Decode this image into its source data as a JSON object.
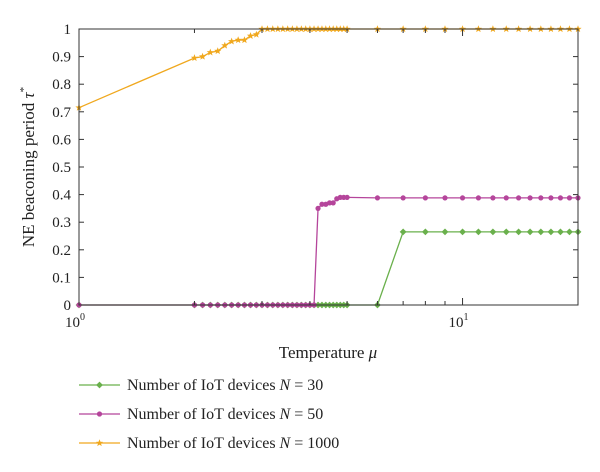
{
  "chart_data": {
    "type": "line",
    "xlabel": "Temperature",
    "xlabel_var": "μ",
    "ylabel": "NE beaconing period",
    "ylabel_var": "τ",
    "ylabel_sup": "*",
    "xscale": "log",
    "xlim": [
      1,
      20
    ],
    "ylim": [
      0,
      1
    ],
    "x_ticks": [
      {
        "value": 1,
        "base": "10",
        "exp": "0"
      },
      {
        "value": 10,
        "base": "10",
        "exp": "1"
      }
    ],
    "y_ticks": [
      {
        "value": 0,
        "label": "0"
      },
      {
        "value": 0.1,
        "label": "0.1"
      },
      {
        "value": 0.2,
        "label": "0.2"
      },
      {
        "value": 0.3,
        "label": "0.3"
      },
      {
        "value": 0.4,
        "label": "0.4"
      },
      {
        "value": 0.5,
        "label": "0.5"
      },
      {
        "value": 0.6,
        "label": "0.6"
      },
      {
        "value": 0.7,
        "label": "0.7"
      },
      {
        "value": 0.8,
        "label": "0.8"
      },
      {
        "value": 0.9,
        "label": "0.9"
      },
      {
        "value": 1,
        "label": "1"
      }
    ],
    "grid": false,
    "legend_position": "bottom",
    "series": [
      {
        "name_prefix": "Number of IoT devices",
        "name_var": "N",
        "name_value": "= 30",
        "color": "#6ab04c",
        "marker": "diamond",
        "x": [
          1,
          2,
          2.1,
          2.2,
          2.3,
          2.4,
          2.5,
          2.6,
          2.7,
          2.8,
          2.9,
          3.0,
          3.1,
          3.2,
          3.3,
          3.4,
          3.5,
          3.6,
          3.7,
          3.8,
          3.9,
          4.0,
          4.1,
          4.2,
          4.3,
          4.4,
          4.5,
          4.6,
          4.7,
          4.8,
          4.9,
          5.0,
          6,
          7,
          8,
          9,
          10,
          11,
          12,
          13,
          14,
          15,
          16,
          17,
          18,
          19,
          20
        ],
        "y": [
          0,
          0,
          0,
          0,
          0,
          0,
          0,
          0,
          0,
          0,
          0,
          0,
          0,
          0,
          0,
          0,
          0,
          0,
          0,
          0,
          0,
          0,
          0,
          0,
          0,
          0,
          0,
          0,
          0,
          0,
          0,
          0,
          0,
          0.265,
          0.265,
          0.265,
          0.265,
          0.265,
          0.265,
          0.265,
          0.265,
          0.265,
          0.265,
          0.265,
          0.265,
          0.265,
          0.265
        ]
      },
      {
        "name_prefix": "Number of IoT devices",
        "name_var": "N",
        "name_value": "= 50",
        "color": "#b5459b",
        "marker": "circle",
        "x": [
          1,
          2,
          2.1,
          2.2,
          2.3,
          2.4,
          2.5,
          2.6,
          2.7,
          2.8,
          2.9,
          3.0,
          3.1,
          3.2,
          3.3,
          3.4,
          3.5,
          3.6,
          3.7,
          3.8,
          3.9,
          4.0,
          4.1,
          4.2,
          4.3,
          4.4,
          4.5,
          4.6,
          4.7,
          4.8,
          4.9,
          5.0,
          6,
          7,
          8,
          9,
          10,
          11,
          12,
          13,
          14,
          15,
          16,
          17,
          18,
          19,
          20
        ],
        "y": [
          0,
          0,
          0,
          0,
          0,
          0,
          0,
          0,
          0,
          0,
          0,
          0,
          0,
          0,
          0,
          0,
          0,
          0,
          0,
          0,
          0,
          0,
          0,
          0.35,
          0.365,
          0.365,
          0.37,
          0.37,
          0.385,
          0.39,
          0.39,
          0.39,
          0.388,
          0.388,
          0.388,
          0.388,
          0.388,
          0.388,
          0.388,
          0.388,
          0.388,
          0.388,
          0.388,
          0.388,
          0.388,
          0.388,
          0.388
        ]
      },
      {
        "name_prefix": "Number of IoT devices",
        "name_var": "N",
        "name_value": "= 1000",
        "color": "#f0a81e",
        "marker": "star",
        "x": [
          1,
          2,
          2.1,
          2.2,
          2.3,
          2.4,
          2.5,
          2.6,
          2.7,
          2.8,
          2.9,
          3.0,
          3.1,
          3.2,
          3.3,
          3.4,
          3.5,
          3.6,
          3.7,
          3.8,
          3.9,
          4.0,
          4.1,
          4.2,
          4.3,
          4.4,
          4.5,
          4.6,
          4.7,
          4.8,
          4.9,
          5.0,
          6,
          7,
          8,
          9,
          10,
          11,
          12,
          13,
          14,
          15,
          16,
          17,
          18,
          19,
          20
        ],
        "y": [
          0.715,
          0.895,
          0.9,
          0.915,
          0.92,
          0.94,
          0.955,
          0.96,
          0.96,
          0.975,
          0.98,
          1,
          1,
          1,
          1,
          1,
          1,
          1,
          1,
          1,
          1,
          1,
          1,
          1,
          1,
          1,
          1,
          1,
          1,
          1,
          1,
          1,
          1,
          1,
          1,
          1,
          1,
          1,
          1,
          1,
          1,
          1,
          1,
          1,
          1,
          1,
          1
        ]
      }
    ]
  }
}
